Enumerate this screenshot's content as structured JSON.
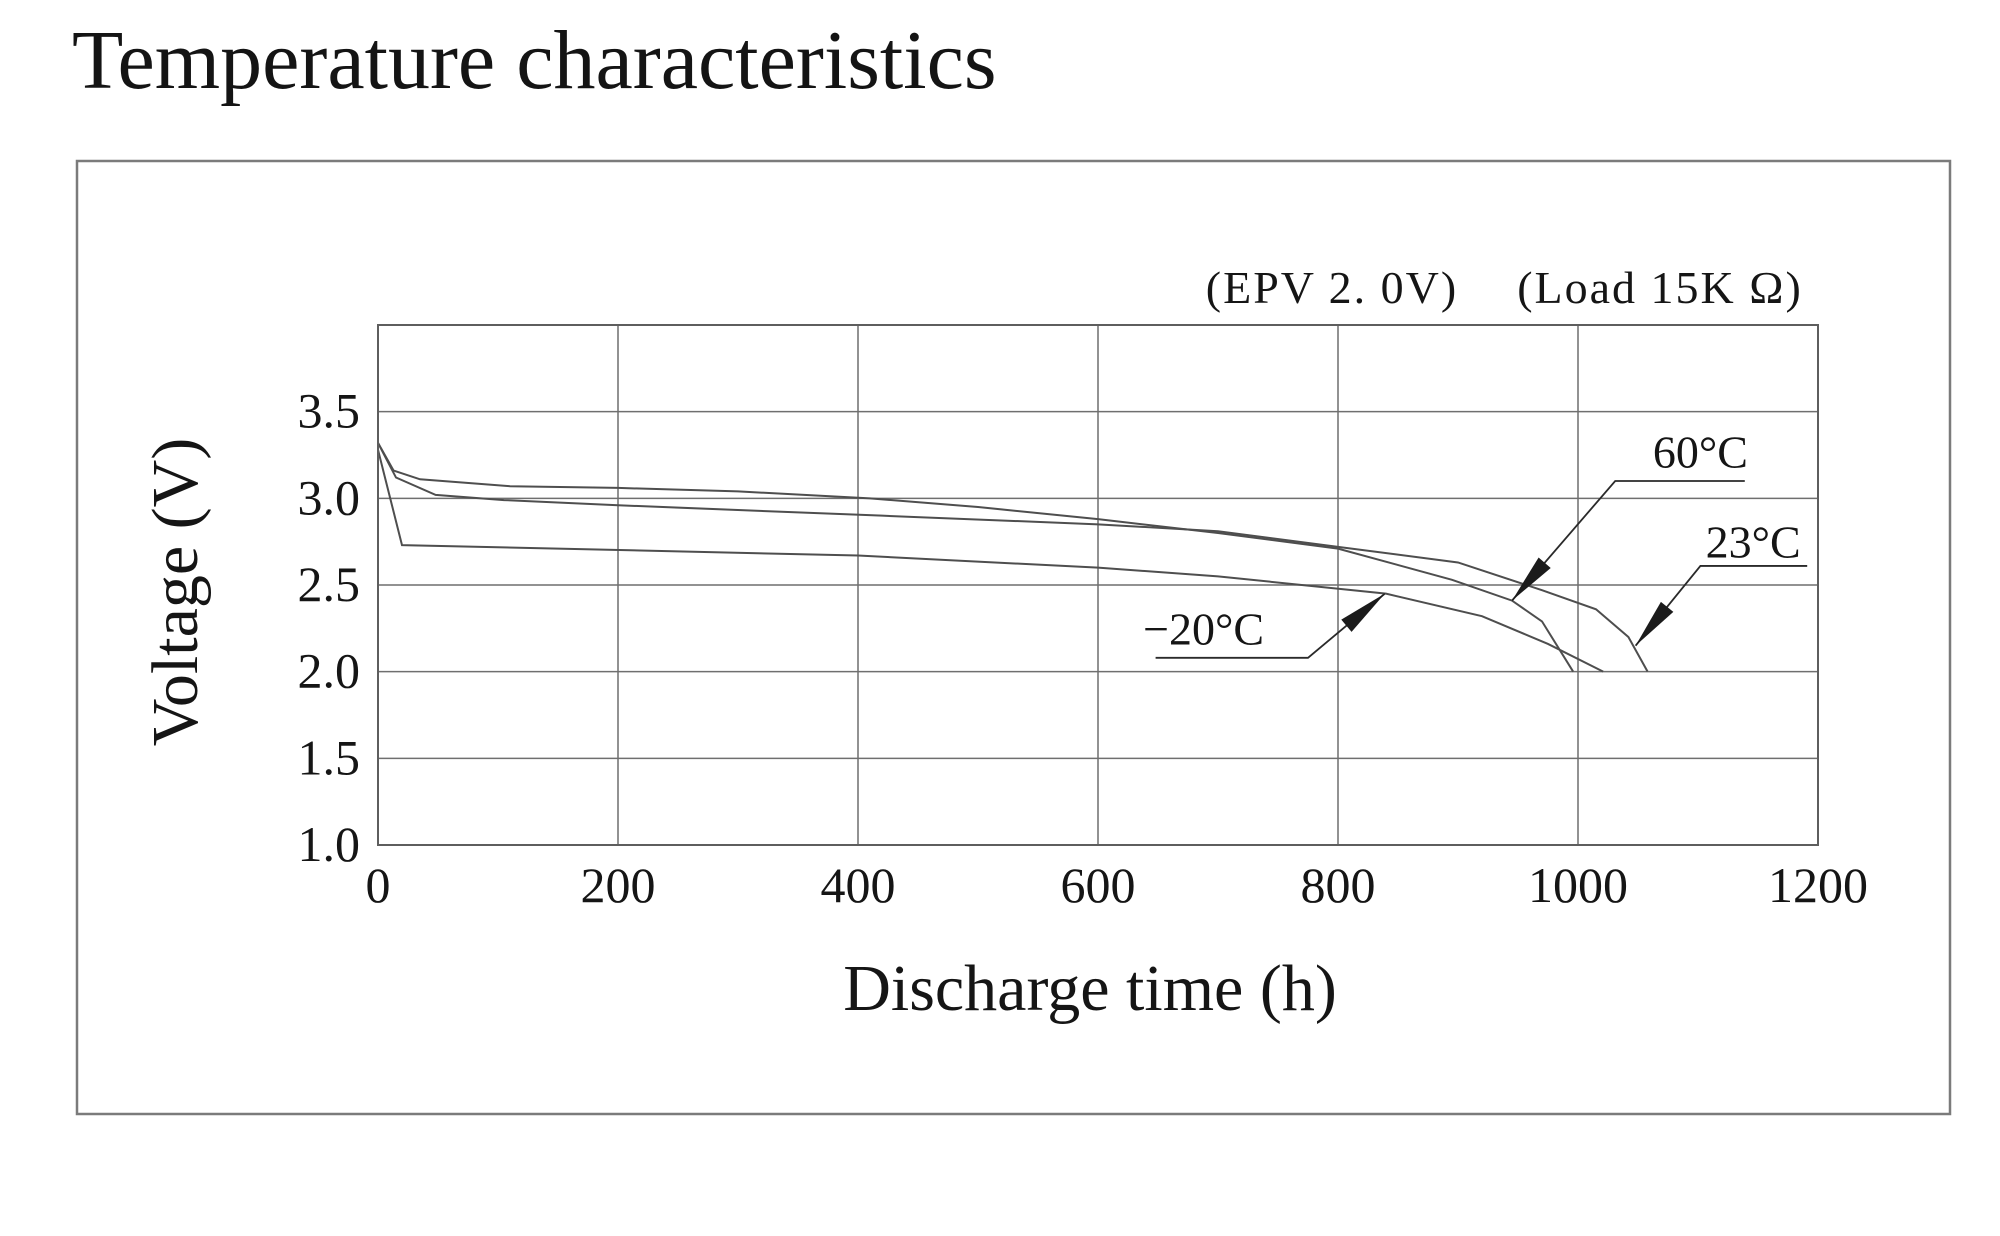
{
  "page": {
    "background": "#ffffff",
    "line_color": "#4e4e4e",
    "grid_color": "#6f6f6f",
    "text_color": "#151515"
  },
  "chart_data": {
    "type": "line",
    "title": "Temperature characteristics",
    "xlabel": "Discharge time (h)",
    "ylabel": "Voltage (V)",
    "conditions": [
      "(EPV 2. 0V)",
      "(Load 15K Ω)"
    ],
    "xlim": [
      0,
      1200
    ],
    "ylim": [
      1.0,
      4.0
    ],
    "x_ticks": [
      0,
      200,
      400,
      600,
      800,
      1000,
      1200
    ],
    "x_tick_labels": [
      "0",
      "200",
      "400",
      "600",
      "800",
      "1000",
      "1200"
    ],
    "y_ticks": [
      3.5,
      3.0,
      2.5,
      2.0,
      1.5,
      1.0
    ],
    "y_tick_labels": [
      "3.5",
      "3.0",
      "2.5",
      "2.0",
      "1.5",
      "1.0"
    ],
    "grid": true,
    "legend_position": "inline-arrow-labels",
    "series": [
      {
        "name": "60°C",
        "points": [
          [
            0,
            3.32
          ],
          [
            13,
            3.16
          ],
          [
            35,
            3.11
          ],
          [
            110,
            3.07
          ],
          [
            200,
            3.06
          ],
          [
            300,
            3.04
          ],
          [
            410,
            3.0
          ],
          [
            500,
            2.95
          ],
          [
            600,
            2.88
          ],
          [
            700,
            2.8
          ],
          [
            800,
            2.71
          ],
          [
            895,
            2.53
          ],
          [
            945,
            2.41
          ],
          [
            970,
            2.29
          ],
          [
            996,
            2.0
          ]
        ]
      },
      {
        "name": "23°C",
        "points": [
          [
            0,
            3.32
          ],
          [
            15,
            3.12
          ],
          [
            48,
            3.02
          ],
          [
            105,
            2.99
          ],
          [
            200,
            2.96
          ],
          [
            420,
            2.9
          ],
          [
            600,
            2.85
          ],
          [
            700,
            2.81
          ],
          [
            800,
            2.72
          ],
          [
            900,
            2.63
          ],
          [
            970,
            2.47
          ],
          [
            1015,
            2.36
          ],
          [
            1042,
            2.2
          ],
          [
            1058,
            2.0
          ]
        ]
      },
      {
        "name": "−20°C",
        "points": [
          [
            0,
            3.28
          ],
          [
            20,
            2.73
          ],
          [
            150,
            2.71
          ],
          [
            400,
            2.67
          ],
          [
            600,
            2.6
          ],
          [
            700,
            2.55
          ],
          [
            840,
            2.45
          ],
          [
            920,
            2.32
          ],
          [
            975,
            2.16
          ],
          [
            1021,
            2.0
          ]
        ]
      }
    ],
    "annotations": [
      {
        "label": "60°C",
        "tip": [
          945,
          2.41
        ],
        "elbow": [
          1031,
          3.1
        ],
        "line_end": [
          1139,
          3.1
        ],
        "label_pos": [
          1102,
          3.27
        ]
      },
      {
        "label": "23°C",
        "tip": [
          1048,
          2.15
        ],
        "elbow": [
          1102,
          2.61
        ],
        "line_end": [
          1191,
          2.61
        ],
        "label_pos": [
          1146,
          2.75
        ]
      },
      {
        "label": "−20°C",
        "tip": [
          839,
          2.45
        ],
        "elbow": [
          775,
          2.08
        ],
        "line_end": [
          648,
          2.08
        ],
        "label_pos": [
          688,
          2.25
        ]
      }
    ]
  }
}
